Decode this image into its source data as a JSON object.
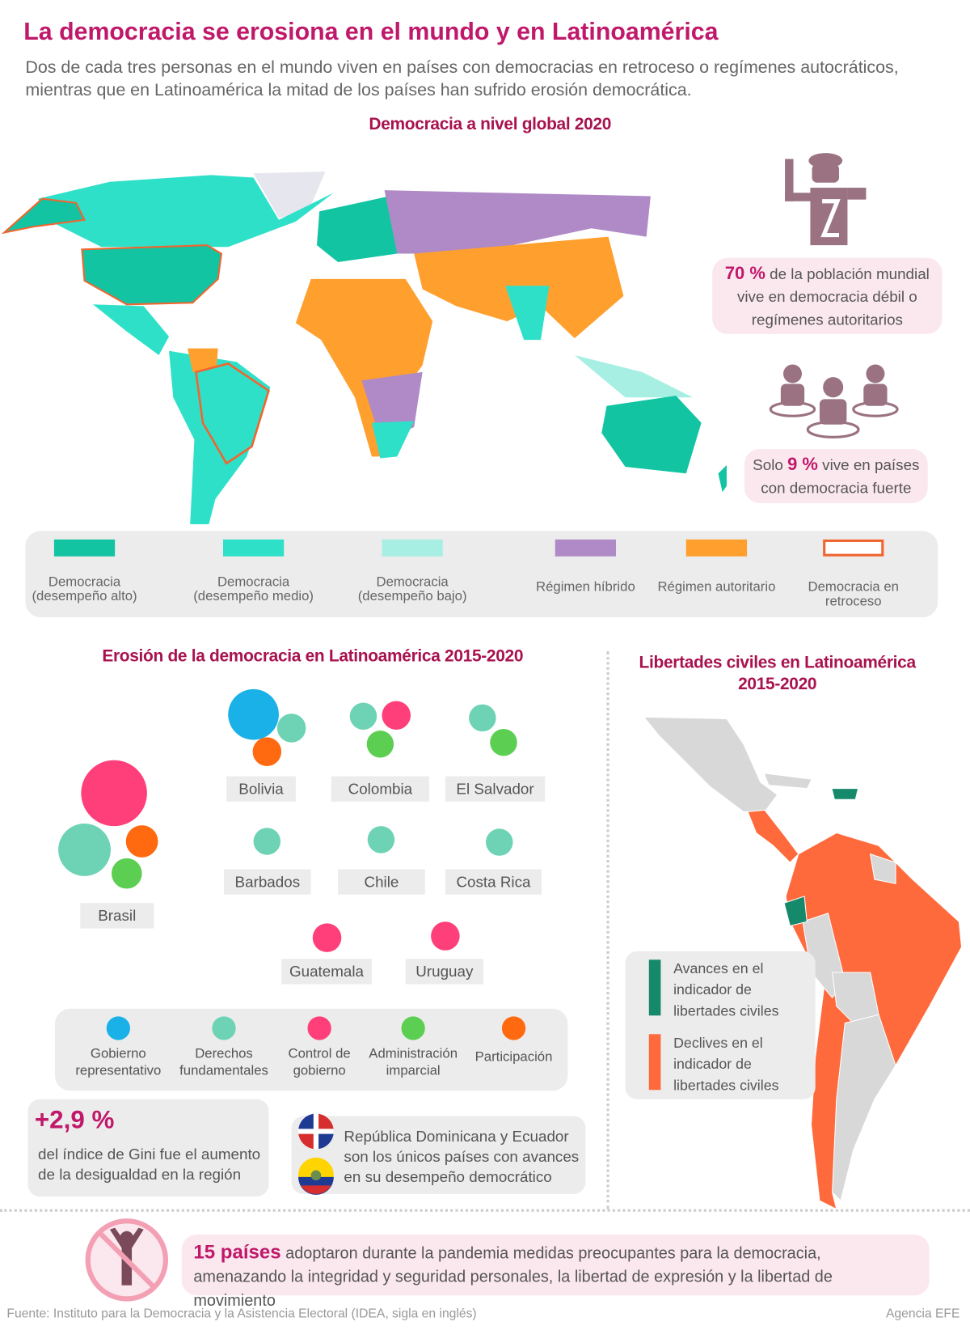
{
  "header": {
    "title": "La democracia se erosiona en el mundo y en Latinoamérica",
    "subtitle": "Dos de cada tres personas en el mundo viven en países con democracias en retroceso o regímenes autocráticos, mientras que en Latinoamérica la mitad de los países han sufrido erosión democrática."
  },
  "global_map": {
    "title": "Democracia a nivel global 2020",
    "legend": [
      {
        "label": "Democracia (desempeño alto)",
        "color": "#13c4a3"
      },
      {
        "label": "Democracia (desempeño medio)",
        "color": "#2fe0c8"
      },
      {
        "label": "Democracia (desempeño bajo)",
        "color": "#a8efe3"
      },
      {
        "label": "Régimen híbrido",
        "color": "#b08ac6"
      },
      {
        "label": "Régimen autoritario",
        "color": "#ff9f2e"
      },
      {
        "label": "Democracia en retroceso",
        "color": "#f0652f",
        "outline": true
      }
    ]
  },
  "stats": [
    {
      "highlight": "70 %",
      "text": "de la población mundial vive en democracia débil o regímenes autoritarios"
    },
    {
      "prefix": "Solo",
      "highlight": "9 %",
      "text": "vive en países con democracia fuerte"
    }
  ],
  "erosion": {
    "title": "Erosión de la democracia en Latinoamérica 2015-2020",
    "countries": [
      {
        "name": "Brasil",
        "bubbles": [
          "#ff3f7a",
          "#6dd3b4",
          "#ff6a10",
          "#5ccf52"
        ]
      },
      {
        "name": "Bolivia",
        "bubbles": [
          "#1ab0e8",
          "#6dd3b4",
          "#ff6a10"
        ]
      },
      {
        "name": "Colombia",
        "bubbles": [
          "#6dd3b4",
          "#ff3f7a",
          "#5ccf52"
        ]
      },
      {
        "name": "El Salvador",
        "bubbles": [
          "#6dd3b4",
          "#5ccf52"
        ]
      },
      {
        "name": "Barbados",
        "bubbles": [
          "#6dd3b4"
        ]
      },
      {
        "name": "Chile",
        "bubbles": [
          "#6dd3b4"
        ]
      },
      {
        "name": "Costa Rica",
        "bubbles": [
          "#6dd3b4"
        ]
      },
      {
        "name": "Guatemala",
        "bubbles": [
          "#ff3f7a"
        ]
      },
      {
        "name": "Uruguay",
        "bubbles": [
          "#ff3f7a"
        ]
      }
    ],
    "legend": [
      {
        "label": "Gobierno representativo",
        "color": "#1ab0e8"
      },
      {
        "label": "Derechos fundamentales",
        "color": "#6dd3b4"
      },
      {
        "label": "Control de gobierno",
        "color": "#ff3f7a"
      },
      {
        "label": "Administración imparcial",
        "color": "#5ccf52"
      },
      {
        "label": "Participación",
        "color": "#ff6a10"
      }
    ]
  },
  "gini": {
    "highlight": "+2,9 %",
    "text": "del índice de Gini fue el aumento de la desigualdad en la región"
  },
  "advances_note": "República Dominicana y Ecuador son los únicos países con avances en su desempeño democrático",
  "civil_liberties": {
    "title": "Libertades civiles en Latinoamérica 2015-2020",
    "legend": [
      {
        "label": "Avances en el indicador de libertades civiles",
        "color": "#16896b"
      },
      {
        "label": "Declives en el indicador de libertades civiles",
        "color": "#ff6a3d"
      }
    ]
  },
  "pandemic": {
    "highlight": "15 países",
    "text": "adoptaron durante la pandemia medidas preocupantes para la democracia, amenazando la integridad y seguridad personales, la libertad de expresión y la libertad de movimiento"
  },
  "footer": {
    "source": "Fuente: Instituto para la Democracia y la Asistencia Electoral (IDEA, sigla en inglés)",
    "credit": "Agencia EFE"
  }
}
